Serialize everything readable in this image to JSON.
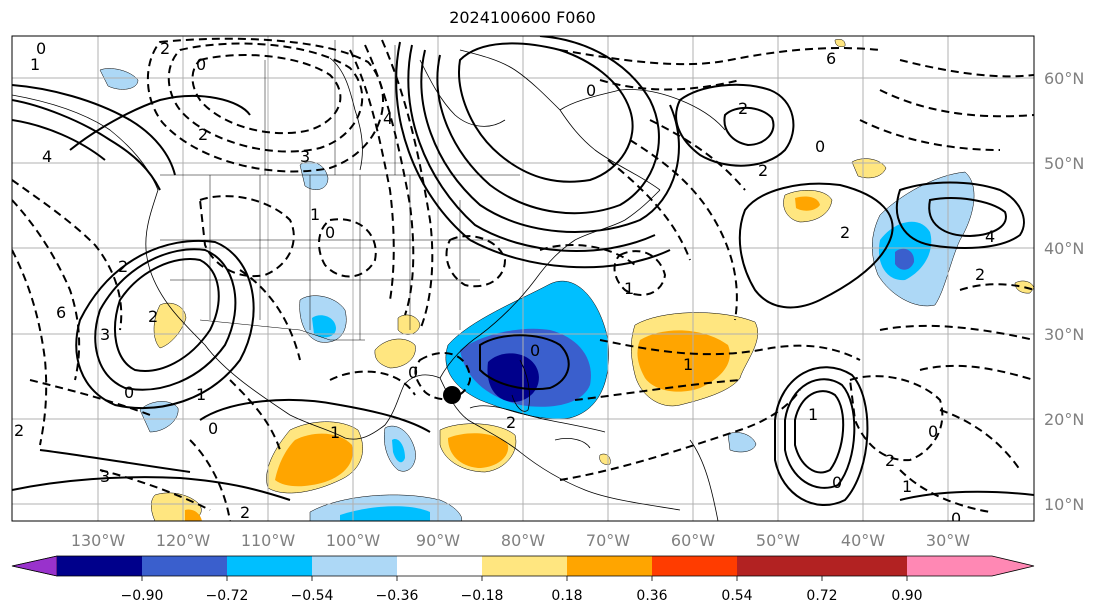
{
  "title": "2024100600 F060",
  "longitude_labels": [
    "130°W",
    "120°W",
    "110°W",
    "100°W",
    "90°W",
    "80°W",
    "70°W",
    "60°W",
    "50°W",
    "40°W",
    "30°W"
  ],
  "latitude_labels": [
    "60°N",
    "50°N",
    "40°N",
    "30°N",
    "20°N",
    "10°N"
  ],
  "colorbar": {
    "tick_labels": [
      "−0.90",
      "−0.72",
      "−0.54",
      "−0.36",
      "−0.18",
      "0.18",
      "0.36",
      "0.54",
      "0.72",
      "0.90"
    ],
    "colors": [
      "#9932cc",
      "#00008b",
      "#3a5fcd",
      "#00bfff",
      "#add8f6",
      "#ffffff",
      "#ffe680",
      "#ffa500",
      "#ff3c00",
      "#b22222",
      "#ff88b4"
    ],
    "extend": "both"
  },
  "contour_labels": [
    "0",
    "2",
    "1",
    "4",
    "2",
    "1",
    "0",
    "3",
    "4",
    "2",
    "6",
    "3",
    "2",
    "0",
    "1",
    "2",
    "3",
    "0",
    "2",
    "1",
    "0",
    "2",
    "1",
    "0",
    "0",
    "0",
    "2",
    "1",
    "2",
    "0",
    "2",
    "0",
    "0",
    "1",
    "2",
    "0",
    "2",
    "4",
    "6",
    "1"
  ],
  "colors": {
    "land_line": "#000000",
    "grid": "#b0b0b0",
    "marker": "#000000"
  }
}
